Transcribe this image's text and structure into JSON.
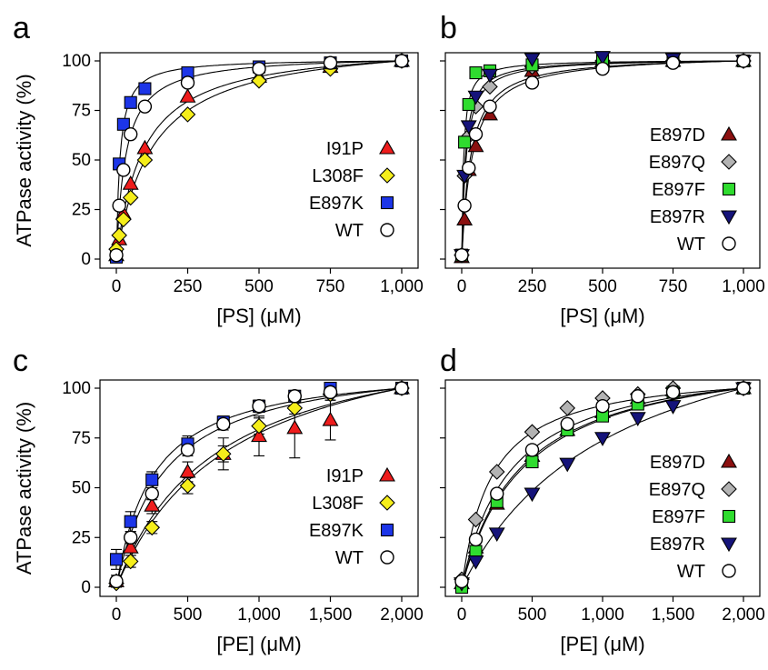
{
  "colors": {
    "I91P": "#ee1c1c",
    "L308F": "#f5ee1a",
    "E897K": "#1c35e8",
    "WT": "#ffffff",
    "E897D": "#8b1010",
    "E897Q": "#b3b3b3",
    "E897F": "#2fdc2f",
    "E897R": "#15137a"
  },
  "chart_data": [
    {
      "panel": "a",
      "type": "scatter",
      "xlabel": "[PS] (μM)",
      "ylabel": "ATPase activity (%)",
      "xlim": [
        0,
        1000
      ],
      "ylim": [
        0,
        100
      ],
      "xticks": [
        "0",
        "250",
        "500",
        "750",
        "1,000"
      ],
      "yticks": [
        "0",
        "25",
        "50",
        "75",
        "100"
      ],
      "legend_position": "center-right",
      "series": [
        {
          "name": "I91P",
          "marker": "triangle-up",
          "x": [
            0,
            10,
            25,
            50,
            100,
            250,
            500,
            750,
            1000
          ],
          "y": [
            2,
            10,
            23,
            38,
            56,
            82,
            92,
            97,
            100
          ]
        },
        {
          "name": "L308F",
          "marker": "diamond",
          "x": [
            0,
            10,
            25,
            50,
            100,
            250,
            500,
            750,
            1000
          ],
          "y": [
            5,
            12,
            20,
            31,
            50,
            73,
            90,
            96,
            100
          ]
        },
        {
          "name": "E897K",
          "marker": "square",
          "x": [
            0,
            10,
            25,
            50,
            100,
            250,
            500,
            750,
            1000
          ],
          "y": [
            1,
            48,
            68,
            79,
            86,
            94,
            97,
            99,
            100
          ]
        },
        {
          "name": "WT",
          "marker": "circle",
          "x": [
            0,
            10,
            25,
            50,
            100,
            250,
            500,
            750,
            1000
          ],
          "y": [
            2,
            27,
            45,
            63,
            77,
            89,
            96,
            99,
            100
          ]
        }
      ]
    },
    {
      "panel": "b",
      "type": "scatter",
      "xlabel": "[PS] (μM)",
      "ylabel": "",
      "xlim": [
        0,
        1000
      ],
      "ylim": [
        0,
        100
      ],
      "xticks": [
        "0",
        "250",
        "500",
        "750",
        "1,000"
      ],
      "yticks": [],
      "legend_position": "center-right",
      "series": [
        {
          "name": "E897D",
          "marker": "triangle-up",
          "x": [
            0,
            10,
            25,
            50,
            100,
            250,
            500,
            750,
            1000
          ],
          "y": [
            1,
            20,
            45,
            57,
            73,
            95,
            100,
            100,
            100
          ]
        },
        {
          "name": "E897Q",
          "marker": "diamond",
          "x": [
            0,
            10,
            25,
            50,
            100,
            250,
            500,
            750,
            1000
          ],
          "y": [
            2,
            42,
            62,
            77,
            87,
            97,
            100,
            100,
            100
          ]
        },
        {
          "name": "E897F",
          "marker": "square",
          "x": [
            0,
            10,
            25,
            50,
            100,
            250,
            500,
            750,
            1000
          ],
          "y": [
            2,
            59,
            78,
            94,
            95,
            98,
            100,
            100,
            100
          ]
        },
        {
          "name": "E897R",
          "marker": "triangle-down",
          "x": [
            0,
            10,
            25,
            50,
            100,
            250,
            500,
            750,
            1000
          ],
          "y": [
            2,
            42,
            67,
            82,
            93,
            101,
            102,
            101,
            100
          ]
        },
        {
          "name": "WT",
          "marker": "circle",
          "x": [
            0,
            10,
            25,
            50,
            100,
            250,
            500,
            750,
            1000
          ],
          "y": [
            2,
            27,
            46,
            63,
            77,
            89,
            96,
            99,
            100
          ]
        }
      ]
    },
    {
      "panel": "c",
      "type": "scatter",
      "xlabel": "[PE] (μM)",
      "ylabel": "ATPase activity (%)",
      "xlim": [
        0,
        2000
      ],
      "ylim": [
        0,
        100
      ],
      "xticks": [
        "0",
        "500",
        "1,000",
        "1,500",
        "2,000"
      ],
      "yticks": [
        "0",
        "25",
        "50",
        "75",
        "100"
      ],
      "legend_position": "center-right",
      "series": [
        {
          "name": "I91P",
          "marker": "triangle-up",
          "x": [
            0,
            100,
            250,
            500,
            750,
            1000,
            1250,
            1500,
            2000
          ],
          "y": [
            3,
            20,
            41,
            58,
            67,
            76,
            80,
            84,
            100
          ],
          "err": [
            2,
            4,
            4,
            5,
            8,
            10,
            15,
            10,
            0
          ]
        },
        {
          "name": "L308F",
          "marker": "diamond",
          "x": [
            0,
            100,
            250,
            500,
            750,
            1000,
            1250,
            1500,
            2000
          ],
          "y": [
            2,
            13,
            30,
            51,
            67,
            81,
            90,
            97,
            100
          ],
          "err": [
            2,
            3,
            3,
            4,
            4,
            4,
            3,
            3,
            0
          ]
        },
        {
          "name": "E897K",
          "marker": "square",
          "x": [
            0,
            100,
            250,
            500,
            750,
            1000,
            1250,
            1500,
            2000
          ],
          "y": [
            14,
            33,
            54,
            72,
            83,
            91,
            96,
            100,
            100
          ],
          "err": [
            5,
            5,
            4,
            4,
            3,
            3,
            2,
            2,
            0
          ]
        },
        {
          "name": "WT",
          "marker": "circle",
          "x": [
            0,
            100,
            250,
            500,
            750,
            1000,
            1250,
            1500,
            2000
          ],
          "y": [
            3,
            25,
            47,
            69,
            82,
            91,
            96,
            98,
            100
          ],
          "err": [
            3,
            3,
            3,
            3,
            3,
            3,
            2,
            2,
            0
          ]
        }
      ]
    },
    {
      "panel": "d",
      "type": "scatter",
      "xlabel": "[PE] (μM)",
      "ylabel": "",
      "xlim": [
        0,
        2000
      ],
      "ylim": [
        0,
        100
      ],
      "xticks": [
        "0",
        "500",
        "1,000",
        "1,500",
        "2,000"
      ],
      "yticks": [],
      "legend_position": "center-right",
      "series": [
        {
          "name": "E897D",
          "marker": "triangle-up",
          "x": [
            0,
            100,
            250,
            500,
            750,
            1000,
            1250,
            1500,
            2000
          ],
          "y": [
            2,
            20,
            42,
            66,
            79,
            88,
            95,
            99,
            100
          ]
        },
        {
          "name": "E897Q",
          "marker": "diamond",
          "x": [
            0,
            100,
            250,
            500,
            750,
            1000,
            1250,
            1500,
            2000
          ],
          "y": [
            4,
            34,
            58,
            78,
            90,
            95,
            97,
            100,
            100
          ]
        },
        {
          "name": "E897F",
          "marker": "square",
          "x": [
            0,
            100,
            250,
            500,
            750,
            1000,
            1250,
            1500,
            2000
          ],
          "y": [
            0,
            18,
            43,
            63,
            79,
            86,
            92,
            98,
            100
          ]
        },
        {
          "name": "E897R",
          "marker": "triangle-down",
          "x": [
            0,
            100,
            250,
            500,
            750,
            1000,
            1250,
            1500,
            2000
          ],
          "y": [
            2,
            13,
            27,
            47,
            62,
            75,
            85,
            91,
            100
          ]
        },
        {
          "name": "WT",
          "marker": "circle",
          "x": [
            0,
            100,
            250,
            500,
            750,
            1000,
            1250,
            1500,
            2000
          ],
          "y": [
            3,
            24,
            47,
            69,
            82,
            91,
            96,
            98,
            100
          ]
        }
      ]
    }
  ]
}
